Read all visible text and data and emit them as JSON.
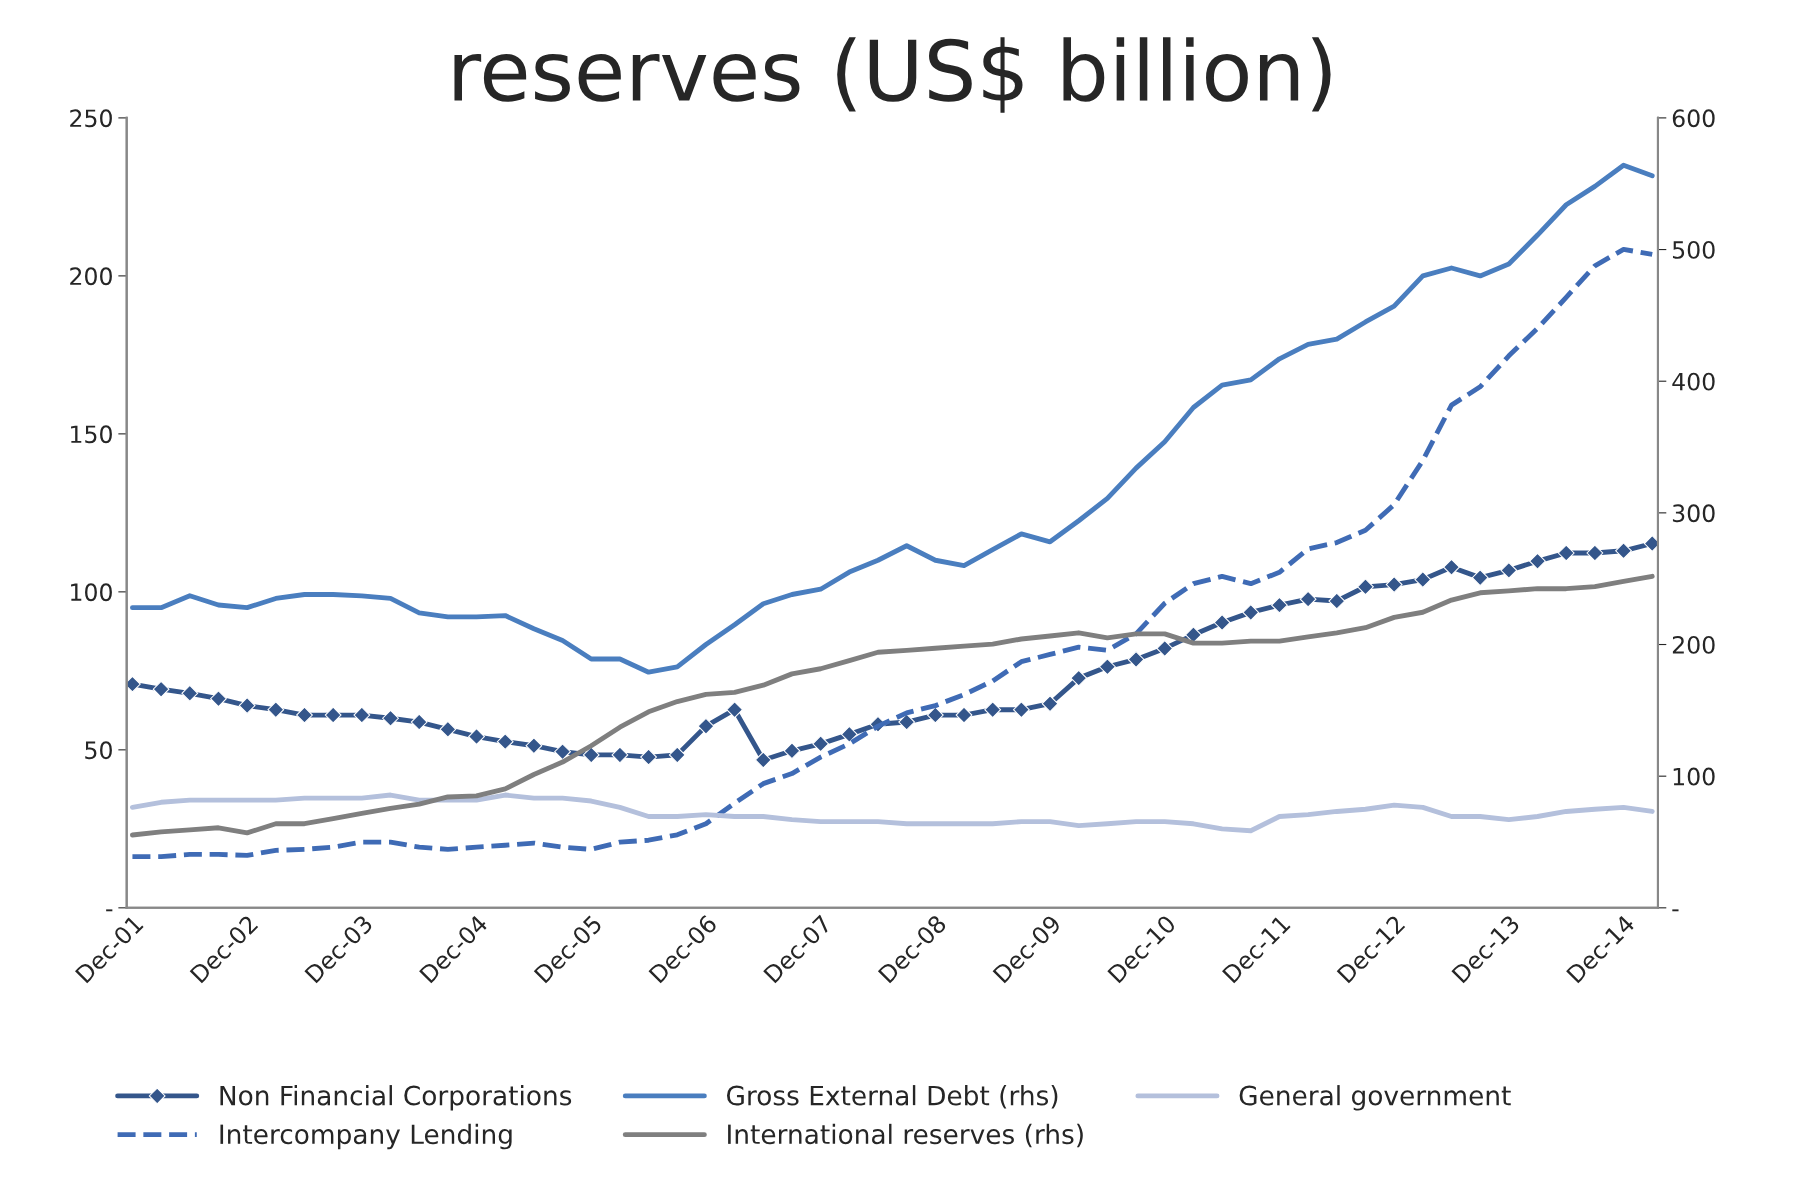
{
  "chart_data": {
    "type": "line",
    "title": "reserves (US$ billion)",
    "categories": [
      "Dec-01",
      null,
      null,
      null,
      "Dec-02",
      null,
      null,
      null,
      "Dec-03",
      null,
      null,
      null,
      "Dec-04",
      null,
      null,
      null,
      "Dec-05",
      null,
      null,
      null,
      "Dec-06",
      null,
      null,
      null,
      "Dec-07",
      null,
      null,
      null,
      "Dec-08",
      null,
      null,
      null,
      "Dec-09",
      null,
      null,
      null,
      "Dec-10",
      null,
      null,
      null,
      "Dec-11",
      null,
      null,
      null,
      "Dec-12",
      null,
      null,
      null,
      "Dec-13",
      null,
      null,
      null,
      "Dec-14",
      null
    ],
    "series": [
      {
        "name": "Non Financial Corporations",
        "color": "#34568b",
        "marker": "diamond",
        "values": [
          70.8,
          69.2,
          67.9,
          66.2,
          64,
          62.7,
          61,
          61,
          61,
          60,
          58.8,
          56.5,
          54.2,
          52.6,
          51.3,
          49.4,
          48.4,
          48.4,
          47.7,
          48.4,
          57.5,
          62.7,
          46.8,
          49.7,
          51.9,
          54.9,
          58.1,
          58.8,
          61,
          61,
          62.7,
          62.7,
          64.6,
          72.7,
          76.3,
          78.6,
          82.1,
          86.4,
          90.3,
          93.5,
          95.8,
          97.7,
          97.1,
          101.6,
          102.3,
          103.9,
          107.8,
          104.5,
          106.8,
          109.7,
          112.3,
          112.3,
          113,
          115.3
        ]
      },
      {
        "name": "Intercompany Lending",
        "color": "#3f6bb5",
        "line_style": "dashed",
        "values": [
          16.2,
          16.2,
          16.9,
          16.9,
          16.6,
          18.2,
          18.5,
          19.2,
          20.8,
          20.8,
          19.2,
          18.5,
          19.2,
          19.8,
          20.5,
          19.2,
          18.5,
          20.8,
          21.4,
          23.1,
          26.6,
          33.1,
          39.3,
          42.5,
          47.7,
          51.9,
          57.5,
          61.7,
          64.0,
          67.5,
          71.8,
          77.9,
          80.2,
          82.5,
          81.5,
          86.7,
          96.4,
          102.6,
          104.9,
          102.6,
          106.2,
          113.6,
          115.6,
          119.5,
          127.6,
          141.6,
          159.1,
          164.9,
          174.7,
          183.4,
          193.2,
          203.2,
          208.4,
          206.8
        ]
      },
      {
        "name": "Gross External Debt (rhs)",
        "color": "#4a7ebf",
        "axis": "y2",
        "values": [
          228,
          228,
          237,
          230,
          228,
          235,
          238,
          238,
          237,
          235,
          224,
          221,
          221,
          222,
          212,
          203,
          189,
          189,
          179,
          183,
          200,
          215,
          231,
          238,
          242,
          255,
          264,
          275,
          264,
          260,
          272,
          284,
          278,
          294,
          311,
          334,
          354,
          380,
          397,
          401,
          417,
          428,
          432,
          445,
          457,
          480,
          486,
          480,
          489,
          511,
          534,
          548,
          564,
          556
        ]
      },
      {
        "name": "International reserves (rhs)",
        "color": "#7f7f7f",
        "axis": "y2",
        "values": [
          55.3,
          57.7,
          59.2,
          60.8,
          56.9,
          63.9,
          63.9,
          67.8,
          71.7,
          75.6,
          78.7,
          84.2,
          85,
          90.4,
          101.3,
          110.7,
          123.1,
          137.2,
          148.9,
          156.7,
          162.1,
          163.7,
          169.1,
          177.7,
          181.6,
          187.8,
          194.1,
          195.6,
          197.2,
          198.8,
          200.3,
          204.2,
          206.5,
          208.9,
          205,
          208.1,
          208.1,
          201.1,
          201.1,
          202.6,
          202.6,
          205.8,
          208.9,
          212.8,
          220.6,
          224.5,
          233.8,
          239.3,
          240.8,
          242.4,
          242.4,
          244,
          247.9,
          251.8
        ]
      },
      {
        "name": "General government",
        "color": "#b4c0dc",
        "values": [
          31.8,
          33.4,
          34.1,
          34.1,
          34.1,
          34.1,
          34.7,
          34.7,
          34.7,
          35.7,
          34.1,
          34.1,
          34.1,
          35.7,
          34.7,
          34.7,
          33.8,
          31.8,
          28.9,
          28.9,
          29.5,
          28.9,
          28.9,
          27.9,
          27.3,
          27.3,
          27.3,
          26.6,
          26.6,
          26.6,
          26.6,
          27.3,
          27.3,
          26.0,
          26.6,
          27.3,
          27.3,
          26.6,
          25.0,
          24.4,
          28.9,
          29.5,
          30.5,
          31.2,
          32.5,
          31.8,
          28.9,
          28.9,
          27.9,
          28.9,
          30.5,
          31.2,
          31.8,
          30.5
        ]
      }
    ],
    "ylim": [
      0,
      250
    ],
    "yticks": [
      {
        "value": 0,
        "label": "-"
      },
      50,
      100,
      150,
      200,
      250
    ],
    "y2lim": [
      0,
      600
    ],
    "y2ticks": [
      {
        "value": 0,
        "label": "-"
      },
      100,
      200,
      300,
      400,
      500,
      600
    ],
    "grid": false,
    "legend": "bottom"
  }
}
